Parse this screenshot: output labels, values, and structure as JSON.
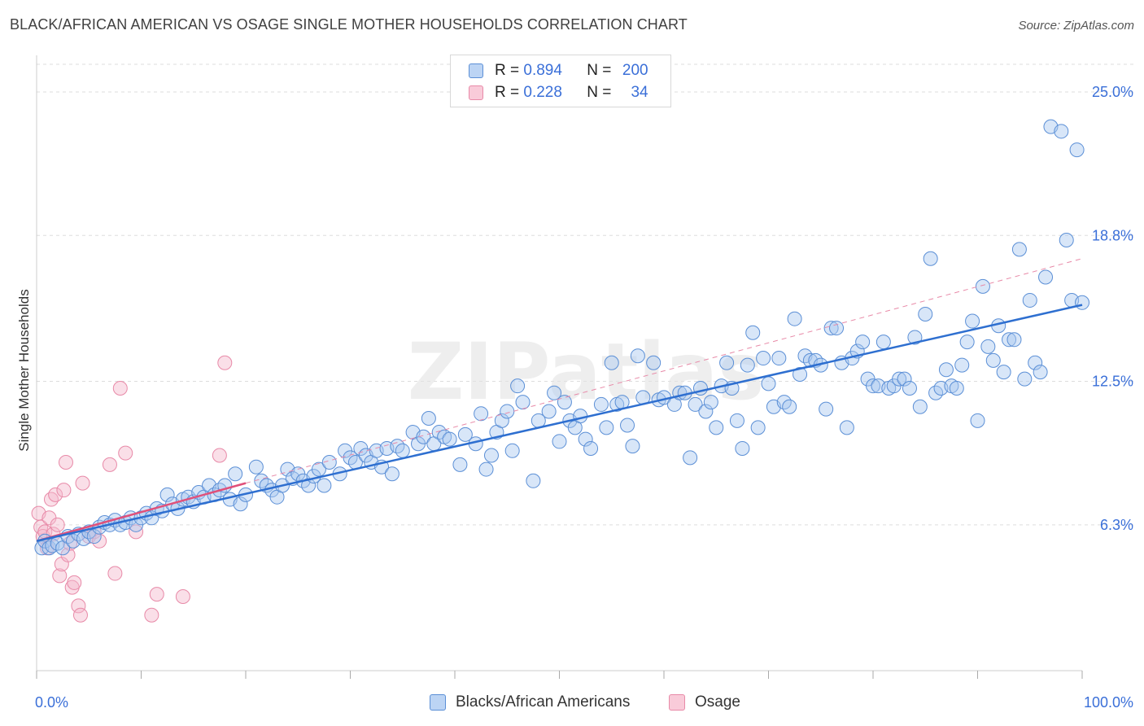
{
  "header": {
    "title": "BLACK/AFRICAN AMERICAN VS OSAGE SINGLE MOTHER HOUSEHOLDS CORRELATION CHART",
    "source": "Source: ZipAtlas.com"
  },
  "watermark": {
    "text": "ZIPatlas"
  },
  "colors": {
    "blue_fill": "#a8c8f0",
    "blue_stroke": "#5b8fd6",
    "blue_line": "#2e6fd0",
    "pink_fill": "#f5b8cc",
    "pink_stroke": "#e88aa8",
    "pink_line": "#e0507a",
    "axis_text": "#3a6fd8",
    "grid": "#dddddd"
  },
  "stats": {
    "series1": {
      "r_label": "R =",
      "r_value": "0.894",
      "n_label": "N =",
      "n_value": "200"
    },
    "series2": {
      "r_label": "R =",
      "r_value": "0.228",
      "n_label": "N =",
      "n_value": "34"
    }
  },
  "legend": {
    "series1": "Blacks/African Americans",
    "series2": "Osage"
  },
  "chart_data": {
    "type": "scatter",
    "title": "BLACK/AFRICAN AMERICAN VS OSAGE SINGLE MOTHER HOUSEHOLDS CORRELATION CHART",
    "xlabel": "",
    "ylabel": "Single Mother Households",
    "xlim": [
      0,
      100
    ],
    "ylim": [
      0,
      26.3
    ],
    "x_tick_labels": [
      "0.0%",
      "100.0%"
    ],
    "y_ticks": [
      6.3,
      12.5,
      18.8,
      25.0
    ],
    "y_tick_labels": [
      "6.3%",
      "12.5%",
      "18.8%",
      "25.0%"
    ],
    "grid": true,
    "legend_position": "bottom-center",
    "series": [
      {
        "name": "Blacks/African Americans",
        "r": 0.894,
        "n": 200,
        "trend": {
          "x": [
            0,
            100
          ],
          "y": [
            5.6,
            15.8
          ],
          "style": "solid"
        },
        "points": [
          [
            0.5,
            5.3
          ],
          [
            0.8,
            5.6
          ],
          [
            1.2,
            5.3
          ],
          [
            1.5,
            5.4
          ],
          [
            2.0,
            5.5
          ],
          [
            2.5,
            5.3
          ],
          [
            3.0,
            5.8
          ],
          [
            3.5,
            5.6
          ],
          [
            4.0,
            5.9
          ],
          [
            4.5,
            5.7
          ],
          [
            5.0,
            6.0
          ],
          [
            5.5,
            5.8
          ],
          [
            6.0,
            6.2
          ],
          [
            6.5,
            6.4
          ],
          [
            7.0,
            6.3
          ],
          [
            7.5,
            6.5
          ],
          [
            8.0,
            6.3
          ],
          [
            8.5,
            6.4
          ],
          [
            9.0,
            6.6
          ],
          [
            9.5,
            6.3
          ],
          [
            10.0,
            6.6
          ],
          [
            10.5,
            6.8
          ],
          [
            11.0,
            6.6
          ],
          [
            11.5,
            7.0
          ],
          [
            12.0,
            6.9
          ],
          [
            12.5,
            7.6
          ],
          [
            13.0,
            7.2
          ],
          [
            13.5,
            7.0
          ],
          [
            14.0,
            7.4
          ],
          [
            14.5,
            7.5
          ],
          [
            15.0,
            7.3
          ],
          [
            15.5,
            7.7
          ],
          [
            16.0,
            7.5
          ],
          [
            16.5,
            8.0
          ],
          [
            17.0,
            7.6
          ],
          [
            17.5,
            7.8
          ],
          [
            18.0,
            8.0
          ],
          [
            18.5,
            7.4
          ],
          [
            19.0,
            8.5
          ],
          [
            19.5,
            7.2
          ],
          [
            20.0,
            7.6
          ],
          [
            21.0,
            8.8
          ],
          [
            21.5,
            8.2
          ],
          [
            22.0,
            8.0
          ],
          [
            22.5,
            7.8
          ],
          [
            23.0,
            7.5
          ],
          [
            23.5,
            8.0
          ],
          [
            24.0,
            8.7
          ],
          [
            24.5,
            8.3
          ],
          [
            25.0,
            8.5
          ],
          [
            25.5,
            8.2
          ],
          [
            26.0,
            8.0
          ],
          [
            26.5,
            8.4
          ],
          [
            27.0,
            8.7
          ],
          [
            27.5,
            8.0
          ],
          [
            28.0,
            9.0
          ],
          [
            29.0,
            8.5
          ],
          [
            29.5,
            9.5
          ],
          [
            30.0,
            9.2
          ],
          [
            30.5,
            9.0
          ],
          [
            31.0,
            9.6
          ],
          [
            31.5,
            9.3
          ],
          [
            32.0,
            9.0
          ],
          [
            32.5,
            9.5
          ],
          [
            33.0,
            8.8
          ],
          [
            33.5,
            9.6
          ],
          [
            34.0,
            8.5
          ],
          [
            34.5,
            9.7
          ],
          [
            35.0,
            9.5
          ],
          [
            36.0,
            10.3
          ],
          [
            36.5,
            9.8
          ],
          [
            37.0,
            10.1
          ],
          [
            37.5,
            10.9
          ],
          [
            38.0,
            9.8
          ],
          [
            38.5,
            10.3
          ],
          [
            39.0,
            10.1
          ],
          [
            39.5,
            10.0
          ],
          [
            40.5,
            8.9
          ],
          [
            41.0,
            10.2
          ],
          [
            42.0,
            9.8
          ],
          [
            42.5,
            11.1
          ],
          [
            43.0,
            8.7
          ],
          [
            43.5,
            9.3
          ],
          [
            44.0,
            10.3
          ],
          [
            44.5,
            10.8
          ],
          [
            45.0,
            11.2
          ],
          [
            45.5,
            9.5
          ],
          [
            46.0,
            12.3
          ],
          [
            46.5,
            11.6
          ],
          [
            47.5,
            8.2
          ],
          [
            48.0,
            10.8
          ],
          [
            49.0,
            11.2
          ],
          [
            49.5,
            12.0
          ],
          [
            50.0,
            9.9
          ],
          [
            50.5,
            11.6
          ],
          [
            51.0,
            10.8
          ],
          [
            51.5,
            10.5
          ],
          [
            52.0,
            11.0
          ],
          [
            52.5,
            10.0
          ],
          [
            53.0,
            9.6
          ],
          [
            54.0,
            11.5
          ],
          [
            54.5,
            10.5
          ],
          [
            55.0,
            13.3
          ],
          [
            55.5,
            11.5
          ],
          [
            56.0,
            11.6
          ],
          [
            56.5,
            10.6
          ],
          [
            57.0,
            9.7
          ],
          [
            57.5,
            13.6
          ],
          [
            58.0,
            11.8
          ],
          [
            59.0,
            13.3
          ],
          [
            59.5,
            11.7
          ],
          [
            60.0,
            11.8
          ],
          [
            61.0,
            11.5
          ],
          [
            61.5,
            12.0
          ],
          [
            62.0,
            12.0
          ],
          [
            62.5,
            9.2
          ],
          [
            63.0,
            11.5
          ],
          [
            63.5,
            12.2
          ],
          [
            64.0,
            11.2
          ],
          [
            64.5,
            11.6
          ],
          [
            65.0,
            10.5
          ],
          [
            65.5,
            12.3
          ],
          [
            66.0,
            13.3
          ],
          [
            66.5,
            12.2
          ],
          [
            67.0,
            10.8
          ],
          [
            67.5,
            9.6
          ],
          [
            68.0,
            13.2
          ],
          [
            68.5,
            14.6
          ],
          [
            69.0,
            10.5
          ],
          [
            69.5,
            13.5
          ],
          [
            70.0,
            12.4
          ],
          [
            70.5,
            11.4
          ],
          [
            71.0,
            13.5
          ],
          [
            71.5,
            11.6
          ],
          [
            72.0,
            11.4
          ],
          [
            72.5,
            15.2
          ],
          [
            73.0,
            12.8
          ],
          [
            73.5,
            13.6
          ],
          [
            74.0,
            13.4
          ],
          [
            74.5,
            13.4
          ],
          [
            75.0,
            13.2
          ],
          [
            75.5,
            11.3
          ],
          [
            76.0,
            14.8
          ],
          [
            76.5,
            14.8
          ],
          [
            77.0,
            13.3
          ],
          [
            77.5,
            10.5
          ],
          [
            78.0,
            13.5
          ],
          [
            78.5,
            13.8
          ],
          [
            79.0,
            14.2
          ],
          [
            79.5,
            12.6
          ],
          [
            80.0,
            12.3
          ],
          [
            80.5,
            12.3
          ],
          [
            81.0,
            14.2
          ],
          [
            81.5,
            12.2
          ],
          [
            82.0,
            12.3
          ],
          [
            82.5,
            12.6
          ],
          [
            83.0,
            12.6
          ],
          [
            83.5,
            12.2
          ],
          [
            84.0,
            14.4
          ],
          [
            84.5,
            11.4
          ],
          [
            85.0,
            15.4
          ],
          [
            85.5,
            17.8
          ],
          [
            86.0,
            12.0
          ],
          [
            86.5,
            12.2
          ],
          [
            87.0,
            13.0
          ],
          [
            87.5,
            12.3
          ],
          [
            88.0,
            12.2
          ],
          [
            88.5,
            13.2
          ],
          [
            89.0,
            14.2
          ],
          [
            89.5,
            15.1
          ],
          [
            90.0,
            10.8
          ],
          [
            90.5,
            16.6
          ],
          [
            91.0,
            14.0
          ],
          [
            91.5,
            13.4
          ],
          [
            92.0,
            14.9
          ],
          [
            92.5,
            12.9
          ],
          [
            93.0,
            14.3
          ],
          [
            93.5,
            14.3
          ],
          [
            94.0,
            18.2
          ],
          [
            94.5,
            12.6
          ],
          [
            95.0,
            16.0
          ],
          [
            95.5,
            13.3
          ],
          [
            96.0,
            12.9
          ],
          [
            96.5,
            17.0
          ],
          [
            97.0,
            23.5
          ],
          [
            98.0,
            23.3
          ],
          [
            98.5,
            18.6
          ],
          [
            99.0,
            16.0
          ],
          [
            99.5,
            22.5
          ],
          [
            100.0,
            15.9
          ]
        ]
      },
      {
        "name": "Osage",
        "r": 0.228,
        "n": 34,
        "trend": {
          "x": [
            0,
            20
          ],
          "y": [
            5.6,
            8.1
          ],
          "style": "solid"
        },
        "trend_extension": {
          "x": [
            20,
            100
          ],
          "y": [
            8.1,
            17.8
          ],
          "style": "dashed"
        },
        "points": [
          [
            0.2,
            6.8
          ],
          [
            0.4,
            6.2
          ],
          [
            0.6,
            5.8
          ],
          [
            0.8,
            6.0
          ],
          [
            1.0,
            5.3
          ],
          [
            1.2,
            6.6
          ],
          [
            1.4,
            7.4
          ],
          [
            1.6,
            5.9
          ],
          [
            1.8,
            7.6
          ],
          [
            2.0,
            6.3
          ],
          [
            2.2,
            4.1
          ],
          [
            2.4,
            4.6
          ],
          [
            2.6,
            7.8
          ],
          [
            2.8,
            9.0
          ],
          [
            3.0,
            5.0
          ],
          [
            3.2,
            5.5
          ],
          [
            3.4,
            3.6
          ],
          [
            3.6,
            3.8
          ],
          [
            4.0,
            2.8
          ],
          [
            4.2,
            2.4
          ],
          [
            4.4,
            8.1
          ],
          [
            5.0,
            5.8
          ],
          [
            5.5,
            6.0
          ],
          [
            6.0,
            5.6
          ],
          [
            7.0,
            8.9
          ],
          [
            7.5,
            4.2
          ],
          [
            8.0,
            12.2
          ],
          [
            8.5,
            9.4
          ],
          [
            9.5,
            6.0
          ],
          [
            11.0,
            2.4
          ],
          [
            11.5,
            3.3
          ],
          [
            14.0,
            3.2
          ],
          [
            17.5,
            9.3
          ],
          [
            18.0,
            13.3
          ]
        ]
      }
    ]
  }
}
